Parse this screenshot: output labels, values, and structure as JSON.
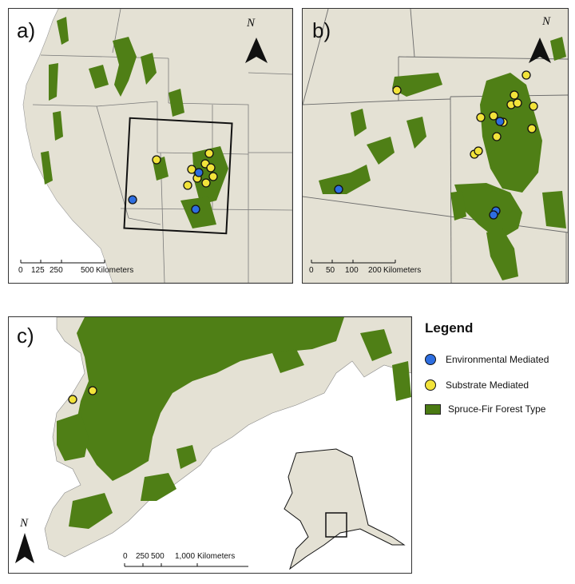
{
  "panels": {
    "a": {
      "label": "a)",
      "north_label": "N",
      "scale_ticks": [
        "0",
        "125",
        "250",
        "500",
        "Kilometers"
      ]
    },
    "b": {
      "label": "b)",
      "north_label": "N",
      "scale_ticks": [
        "0",
        "50",
        "100",
        "200",
        "Kilometers"
      ]
    },
    "c": {
      "label": "c)",
      "north_label": "N",
      "scale_ticks": [
        "0",
        "250",
        "500",
        "1,000",
        "Kilometers"
      ]
    }
  },
  "legend": {
    "title": "Legend",
    "items": [
      {
        "label": "Environmental Mediated",
        "color": "#2e6ee0",
        "shape": "circle"
      },
      {
        "label": "Substrate Mediated",
        "color": "#f2e33a",
        "shape": "circle"
      },
      {
        "label": "Spruce-Fir Forest Type",
        "color": "#4a7a12",
        "shape": "rect"
      }
    ]
  },
  "colors": {
    "land": "#e4e1d4",
    "water": "#ffffff",
    "forest": "#4f7f16",
    "border": "#6a6a6a",
    "frame": "#1a1a1a"
  },
  "icons": [
    "north-arrow-icon",
    "scale-bar-icon",
    "study-area-box-icon"
  ]
}
